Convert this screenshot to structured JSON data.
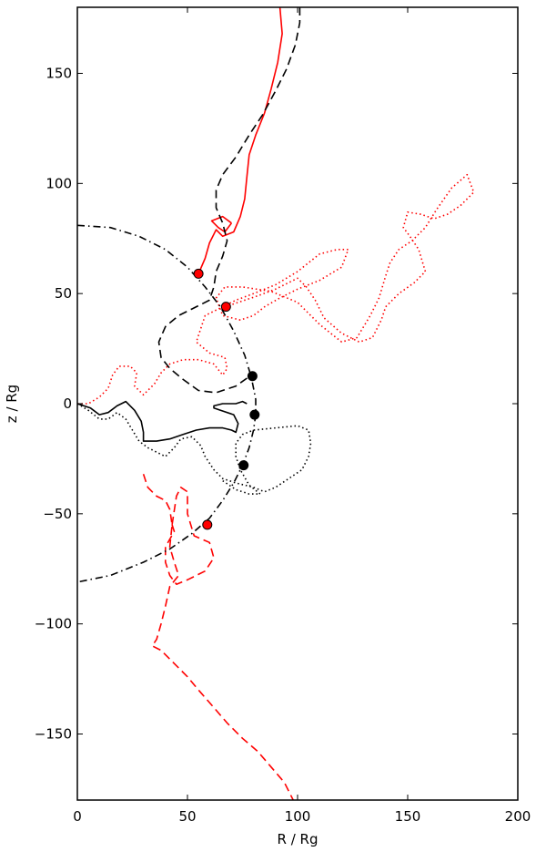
{
  "chart_data": {
    "type": "line",
    "xlabel": "R / Rg",
    "ylabel": "z / Rg",
    "xlim": [
      0,
      200
    ],
    "ylim": [
      -180,
      180
    ],
    "xticks": [
      0,
      50,
      100,
      150,
      200
    ],
    "yticks": [
      -150,
      -100,
      -50,
      0,
      50,
      100,
      150
    ],
    "grid": false,
    "legend": "none",
    "series": [
      {
        "color": "#ff0000",
        "style": "solid",
        "points": [
          [
            92,
            180
          ],
          [
            93,
            168
          ],
          [
            91,
            155
          ],
          [
            88,
            143
          ],
          [
            85,
            132
          ],
          [
            81,
            122
          ],
          [
            78,
            113
          ],
          [
            77,
            103
          ],
          [
            76,
            93
          ],
          [
            74,
            85
          ],
          [
            71,
            78
          ],
          [
            66,
            76
          ],
          [
            63,
            79
          ],
          [
            60,
            73
          ],
          [
            58,
            66
          ],
          [
            55,
            59
          ]
        ],
        "loop": [
          [
            70,
            82
          ],
          [
            66,
            85
          ],
          [
            61,
            83
          ],
          [
            64,
            80
          ],
          [
            67,
            78
          ],
          [
            70,
            82
          ]
        ]
      },
      {
        "color": "#ff0000",
        "style": "dotted",
        "points": [
          [
            0,
            0
          ],
          [
            5,
            0
          ],
          [
            10,
            3
          ],
          [
            14,
            7
          ],
          [
            16,
            13
          ],
          [
            19,
            17
          ],
          [
            24,
            17
          ],
          [
            27,
            14
          ],
          [
            26,
            8
          ],
          [
            30,
            4
          ],
          [
            35,
            9
          ],
          [
            38,
            14
          ],
          [
            42,
            18
          ],
          [
            48,
            20
          ],
          [
            55,
            20
          ],
          [
            62,
            18
          ],
          [
            66,
            13
          ],
          [
            68,
            16
          ],
          [
            67,
            21
          ],
          [
            60,
            23
          ],
          [
            54,
            28
          ],
          [
            58,
            40
          ],
          [
            66,
            44
          ],
          [
            72,
            47
          ],
          [
            80,
            50
          ],
          [
            90,
            54
          ],
          [
            100,
            60
          ],
          [
            110,
            68
          ],
          [
            118,
            70
          ],
          [
            123,
            70
          ],
          [
            120,
            62
          ],
          [
            110,
            56
          ],
          [
            100,
            52
          ],
          [
            92,
            48
          ],
          [
            85,
            44
          ],
          [
            80,
            40
          ],
          [
            74,
            38
          ],
          [
            66,
            40
          ],
          [
            63,
            48
          ],
          [
            67,
            53
          ],
          [
            75,
            53
          ],
          [
            88,
            51
          ],
          [
            100,
            46
          ],
          [
            110,
            36
          ],
          [
            120,
            28
          ],
          [
            127,
            30
          ],
          [
            133,
            40
          ],
          [
            137,
            48
          ],
          [
            140,
            58
          ],
          [
            142,
            64
          ],
          [
            146,
            70
          ],
          [
            152,
            74
          ],
          [
            158,
            80
          ],
          [
            163,
            88
          ],
          [
            170,
            98
          ],
          [
            177,
            104
          ],
          [
            180,
            96
          ],
          [
            174,
            90
          ],
          [
            168,
            86
          ],
          [
            162,
            84
          ],
          [
            156,
            86
          ],
          [
            150,
            87
          ],
          [
            148,
            80
          ],
          [
            151,
            76
          ],
          [
            155,
            70
          ],
          [
            158,
            60
          ],
          [
            153,
            55
          ],
          [
            146,
            50
          ],
          [
            140,
            44
          ],
          [
            138,
            38
          ],
          [
            134,
            30
          ],
          [
            128,
            28
          ],
          [
            120,
            32
          ],
          [
            112,
            39
          ],
          [
            108,
            47
          ],
          [
            104,
            53
          ],
          [
            100,
            57
          ],
          [
            96,
            55
          ],
          [
            90,
            52
          ],
          [
            82,
            49
          ],
          [
            70,
            45
          ]
        ]
      },
      {
        "color": "#ff0000",
        "style": "dashed",
        "points": [
          [
            30,
            -32
          ],
          [
            32,
            -38
          ],
          [
            36,
            -42
          ],
          [
            40,
            -44
          ],
          [
            42,
            -48
          ],
          [
            43,
            -55
          ],
          [
            42,
            -65
          ],
          [
            44,
            -72
          ],
          [
            46,
            -78
          ],
          [
            42,
            -83
          ],
          [
            40,
            -92
          ],
          [
            38,
            -100
          ],
          [
            36,
            -107
          ],
          [
            34,
            -110
          ],
          [
            38,
            -112
          ],
          [
            44,
            -118
          ],
          [
            50,
            -124
          ],
          [
            55,
            -130
          ],
          [
            62,
            -138
          ],
          [
            68,
            -145
          ],
          [
            75,
            -152
          ],
          [
            82,
            -158
          ],
          [
            88,
            -165
          ],
          [
            94,
            -172
          ],
          [
            98,
            -180
          ]
        ],
        "loop": [
          [
            43,
            -55
          ],
          [
            45,
            -42
          ],
          [
            47,
            -38
          ],
          [
            50,
            -40
          ],
          [
            50,
            -50
          ],
          [
            53,
            -60
          ],
          [
            60,
            -63
          ],
          [
            62,
            -70
          ],
          [
            58,
            -76
          ],
          [
            50,
            -80
          ],
          [
            45,
            -82
          ],
          [
            42,
            -78
          ],
          [
            40,
            -72
          ],
          [
            40,
            -65
          ],
          [
            44,
            -58
          ],
          [
            43,
            -55
          ]
        ]
      },
      {
        "color": "#000000",
        "style": "dashed",
        "points": [
          [
            101,
            180
          ],
          [
            101,
            173
          ],
          [
            99,
            163
          ],
          [
            95,
            152
          ],
          [
            90,
            142
          ],
          [
            84,
            131
          ],
          [
            78,
            122
          ],
          [
            72,
            112
          ],
          [
            66,
            104
          ],
          [
            63,
            97
          ],
          [
            63,
            89
          ],
          [
            66,
            82
          ],
          [
            68,
            74
          ],
          [
            66,
            67
          ],
          [
            63,
            60
          ],
          [
            62,
            53
          ],
          [
            60,
            47
          ],
          [
            56,
            45
          ],
          [
            52,
            43
          ],
          [
            46,
            40
          ],
          [
            40,
            35
          ],
          [
            37,
            28
          ],
          [
            38,
            21
          ],
          [
            42,
            16
          ],
          [
            48,
            11
          ],
          [
            55,
            6
          ],
          [
            63,
            5
          ],
          [
            72,
            8
          ],
          [
            79,
            13
          ]
        ]
      },
      {
        "color": "#000000",
        "style": "dashdot",
        "points": [
          [
            0,
            81
          ],
          [
            15,
            80
          ],
          [
            28,
            76
          ],
          [
            40,
            70
          ],
          [
            50,
            62
          ],
          [
            58,
            53
          ],
          [
            65,
            44
          ],
          [
            71,
            33
          ],
          [
            76,
            22
          ],
          [
            79,
            12
          ],
          [
            81,
            2
          ],
          [
            81,
            -5
          ],
          [
            80,
            -12
          ],
          [
            78,
            -20
          ],
          [
            75,
            -28
          ],
          [
            71,
            -36
          ],
          [
            66,
            -44
          ],
          [
            60,
            -52
          ],
          [
            52,
            -59
          ],
          [
            42,
            -66
          ],
          [
            30,
            -72
          ],
          [
            15,
            -78
          ],
          [
            0,
            -81
          ]
        ]
      },
      {
        "color": "#000000",
        "style": "solid",
        "points": [
          [
            0,
            0
          ],
          [
            6,
            -2
          ],
          [
            10,
            -5
          ],
          [
            14,
            -4
          ],
          [
            18,
            -1
          ],
          [
            22,
            1
          ],
          [
            26,
            -3
          ],
          [
            29,
            -8
          ],
          [
            30,
            -13
          ],
          [
            30,
            -17
          ],
          [
            36,
            -17
          ],
          [
            42,
            -16
          ],
          [
            48,
            -14
          ],
          [
            54,
            -12
          ],
          [
            60,
            -11
          ],
          [
            66,
            -11
          ],
          [
            70,
            -12
          ],
          [
            72,
            -13
          ],
          [
            73,
            -9
          ],
          [
            71,
            -5
          ],
          [
            65,
            -3
          ],
          [
            62,
            -2
          ],
          [
            62,
            -1
          ],
          [
            66,
            0
          ],
          [
            72,
            0
          ],
          [
            75,
            1
          ],
          [
            77,
            0
          ]
        ]
      },
      {
        "color": "#000000",
        "style": "dotted",
        "points": [
          [
            0,
            0
          ],
          [
            5,
            -3
          ],
          [
            10,
            -7
          ],
          [
            14,
            -7
          ],
          [
            18,
            -4
          ],
          [
            22,
            -7
          ],
          [
            25,
            -12
          ],
          [
            28,
            -17
          ],
          [
            32,
            -20
          ],
          [
            36,
            -22
          ],
          [
            40,
            -24
          ],
          [
            44,
            -20
          ],
          [
            47,
            -16
          ],
          [
            52,
            -15
          ],
          [
            56,
            -19
          ],
          [
            58,
            -24
          ],
          [
            62,
            -30
          ],
          [
            66,
            -34
          ],
          [
            72,
            -36
          ],
          [
            80,
            -38
          ],
          [
            85,
            -40
          ],
          [
            90,
            -38
          ],
          [
            96,
            -34
          ],
          [
            102,
            -30
          ],
          [
            105,
            -24
          ],
          [
            106,
            -18
          ],
          [
            105,
            -12
          ],
          [
            100,
            -10
          ],
          [
            90,
            -11
          ],
          [
            80,
            -12
          ],
          [
            75,
            -14
          ],
          [
            72,
            -18
          ],
          [
            72,
            -24
          ],
          [
            74,
            -30
          ],
          [
            78,
            -37
          ],
          [
            83,
            -41
          ],
          [
            78,
            -41
          ],
          [
            72,
            -39
          ],
          [
            66,
            -35
          ]
        ]
      }
    ],
    "markers": [
      {
        "color": "#ff0000",
        "x": 55,
        "y": 59
      },
      {
        "color": "#ff0000",
        "x": 67.5,
        "y": 44
      },
      {
        "color": "#000000",
        "x": 79.5,
        "y": 12.5
      },
      {
        "color": "#000000",
        "x": 80.5,
        "y": -5
      },
      {
        "color": "#000000",
        "x": 75.5,
        "y": -28
      },
      {
        "color": "#ff0000",
        "x": 59,
        "y": -55
      }
    ]
  }
}
